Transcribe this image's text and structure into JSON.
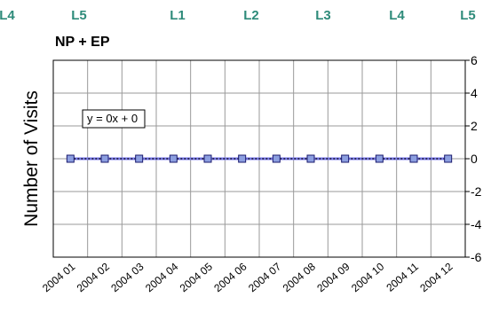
{
  "chart_data": {
    "type": "line",
    "title": "NP + EP",
    "xlabel": "",
    "ylabel": "Number of Visits",
    "ylim": [
      -6,
      6
    ],
    "yticks": [
      6,
      4,
      2,
      0,
      -2,
      -4,
      -6
    ],
    "categories": [
      "2004 01",
      "2004 02",
      "2004 03",
      "2004 04",
      "2004 05",
      "2004 06",
      "2004 07",
      "2004 08",
      "2004 09",
      "2004 10",
      "2004 11",
      "2004 12"
    ],
    "series": [
      {
        "values": [
          0,
          0,
          0,
          0,
          0,
          0,
          0,
          0,
          0,
          0,
          0,
          0
        ]
      }
    ],
    "trendline_label": "y = 0x + 0",
    "band_labels": [
      "L4",
      "L5",
      "L1",
      "L2",
      "L3",
      "L4",
      "L5"
    ],
    "band_label_color": "#2e8b7a",
    "marker_fill": "#8c9fe0",
    "marker_stroke": "#1a1a6e",
    "series_line_color": "#7b7bf0",
    "trend_line_color": "#000000",
    "grid": true,
    "legend": "none"
  }
}
